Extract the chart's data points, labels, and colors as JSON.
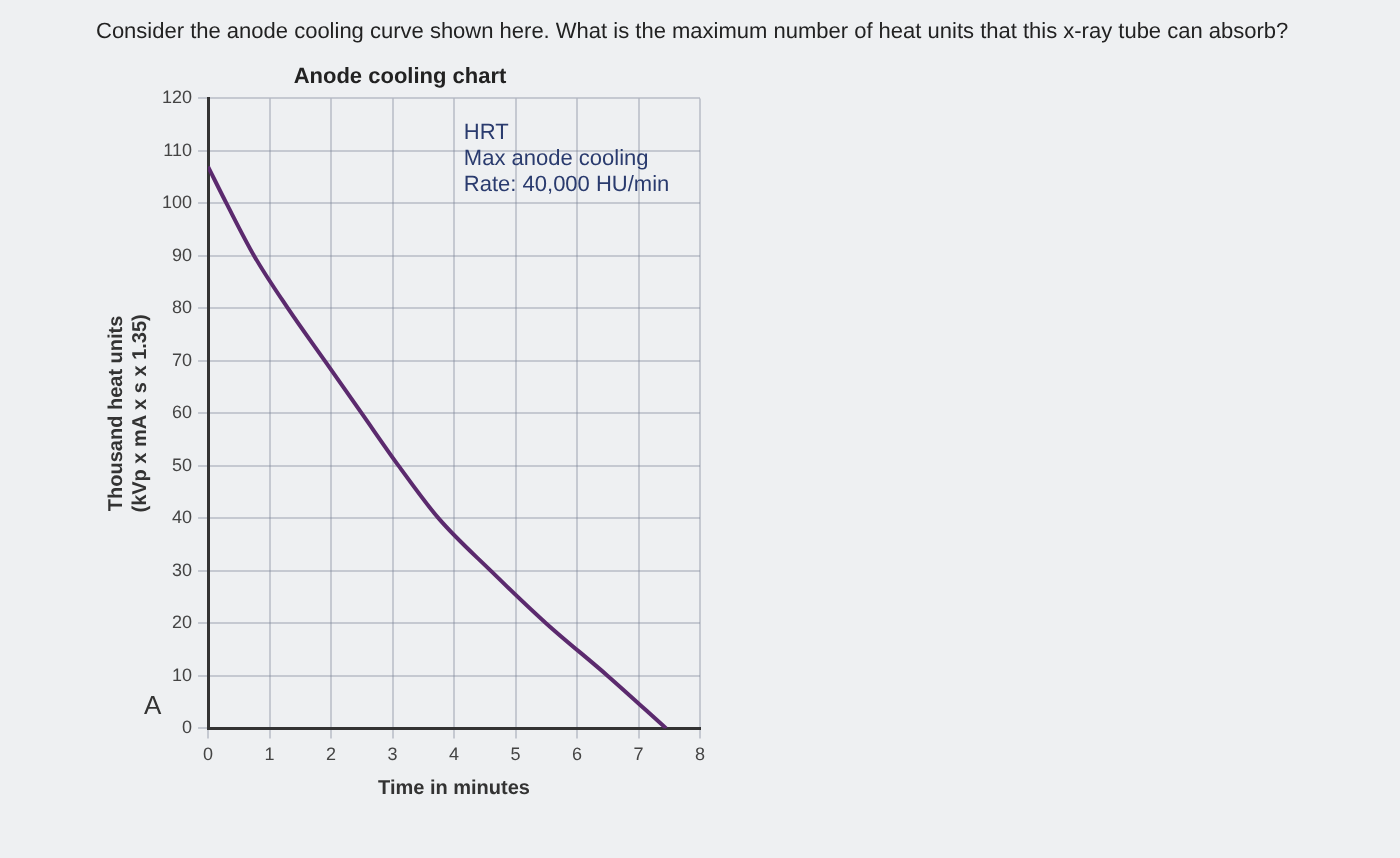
{
  "chart_data": {
    "type": "line",
    "title": "Anode cooling chart",
    "xlabel": "Time in minutes",
    "ylabel": "Thousand heat units\n(kVp x mA x s x 1.35)",
    "annotations": [
      "Consider the anode cooling curve shown here. What is the maximum number of heat units that this x-ray tube can absorb?",
      "A",
      "HRT\nMax anode cooling\nRate: 40,000 HU/min"
    ],
    "series": [
      {
        "color": "#5b2a6e",
        "x": [
          0,
          0.3,
          0.75,
          1.3,
          1.9,
          2.5,
          3.1,
          3.75,
          4.6,
          5.5,
          6.5,
          7.45
        ],
        "values": [
          107,
          100,
          90,
          80,
          70,
          60,
          50,
          40,
          30,
          20,
          10,
          0
        ]
      }
    ],
    "xlim": [
      0,
      8
    ],
    "xticks": [
      0,
      1,
      2,
      3,
      4,
      5,
      6,
      7,
      8
    ],
    "ylim": [
      0,
      120
    ],
    "yticks": [
      0,
      10,
      20,
      30,
      40,
      50,
      60,
      70,
      80,
      90,
      100,
      110,
      120
    ],
    "grid": true,
    "legend": false,
    "marker": "none",
    "line_style": "solid"
  }
}
